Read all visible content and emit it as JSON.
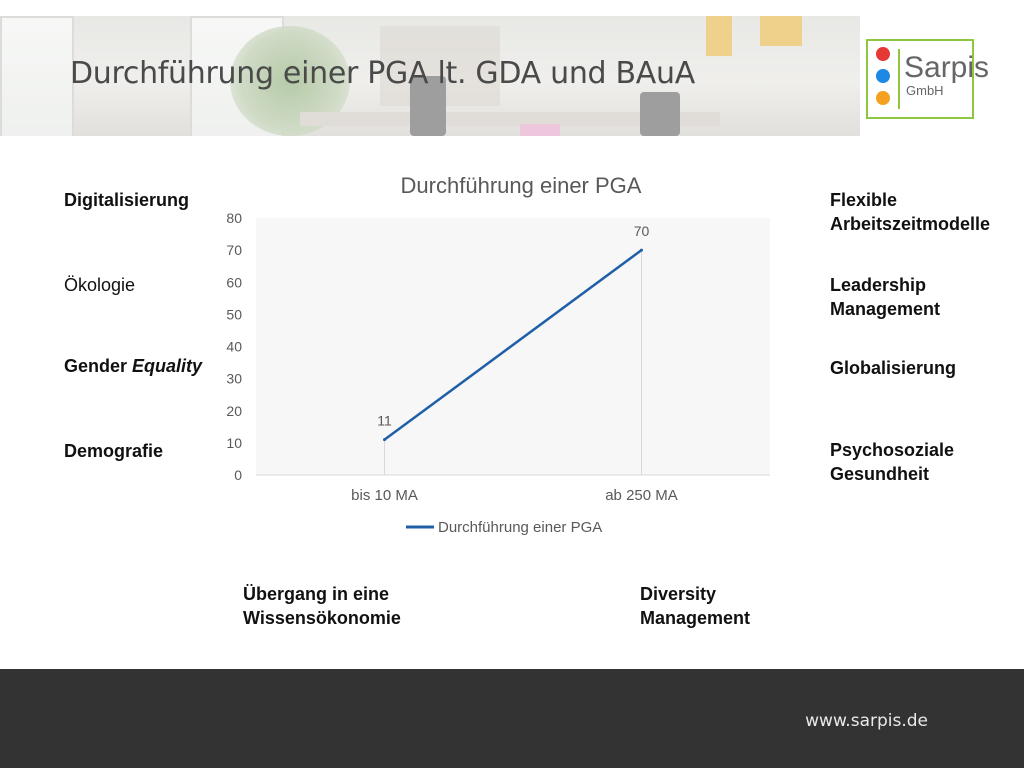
{
  "slide": {
    "title": "Durchführung einer PGA lt. GDA und BAuA"
  },
  "logo": {
    "name": "Sarpis",
    "subtitle": "GmbH",
    "colors": {
      "border": "#8dc63f",
      "red": "#e53935",
      "blue": "#1e88e5",
      "orange": "#f4a020"
    }
  },
  "labels": {
    "left": [
      {
        "text": "Digitalisierung"
      },
      {
        "text": "Ökologie"
      },
      {
        "text": "Gender ",
        "emph": "Equality"
      },
      {
        "text": "Demografie"
      }
    ],
    "right": [
      {
        "line1": "Flexible",
        "line2": "Arbeitszeitmodelle"
      },
      {
        "line1": "Leadership",
        "line2": "Management"
      },
      {
        "line1": "Globalisierung",
        "line2": ""
      },
      {
        "line1": "Psychosoziale",
        "line2": "Gesundheit"
      }
    ],
    "bottom": [
      {
        "line1": "Übergang in eine",
        "line2": "Wissensökonomie"
      },
      {
        "line1": "Diversity",
        "line2": "Management"
      }
    ]
  },
  "chart_data": {
    "type": "line",
    "title": "Durchführung einer PGA",
    "categories": [
      "bis 10 MA",
      "ab 250 MA"
    ],
    "series": [
      {
        "name": "Durchführung einer PGA",
        "values": [
          11,
          70
        ],
        "color": "#1f5fa8"
      }
    ],
    "ylim": [
      0,
      80
    ],
    "yticks": [
      0,
      10,
      20,
      30,
      40,
      50,
      60,
      70,
      80
    ],
    "data_labels": true,
    "grid": false,
    "legend": "bottom"
  },
  "footer": {
    "url": "www.sarpis.de",
    "background": "#333333"
  }
}
